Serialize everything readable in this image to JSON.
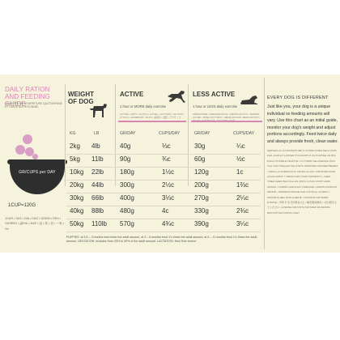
{
  "left": {
    "title": "DAILY RATION AND FEEDING GUIDE",
    "subtitle": "QUANTITÉ DE NOURRITURE QUOTIDIENNE ET GUIDE NUTRITIONNEL",
    "bowl_label": "GR/CUPS per DAY",
    "cup_note": "1CUP=120G",
    "days_text": "JOUR • TAG • DÍA • DAG • DZIEŃ • DEN • GIORNO • ДЕНЬ • NAP • 일 • 天 • 日 • 一天 • يوم"
  },
  "columns": {
    "weight_title": "WEIGHT OF DOG",
    "active_title": "ACTIVE",
    "active_desc": "1 hour or MORE daily exercise",
    "active_meta": "ACTIVE • AKTIV • ACTIVO • ACTIEF • AKTYWNY • AKTIVNÍ • ATTIVO • АКТИВНЫЙ • AKTÍV • 활동적 • 活跃 • アクティブ",
    "less_title": "LESS ACTIVE",
    "less_desc": "1 hour or LESS daily exercise",
    "less_meta": "SÉDENTAIRE • WENIGER AKTIV • MENOS ACTIVO • MINDER ACTIEF • MNIEJ AKTYWNY • MÉNĚ AKTIVNÍ • MENO ATTIVO • МЕНЕЕ АКТИВНЫЙ • KEVÉSBÉ AKTÍV"
  },
  "subheads": {
    "kg": "KG",
    "lb": "LB",
    "gr_day_active": "GR/DAY",
    "cups_day_active": "CUPS/DAY",
    "gr_day_less": "GR/DAY",
    "cups_day_less": "CUPS/DAY"
  },
  "rows": [
    {
      "kg": "2kg",
      "lb": "4lb",
      "gr_a": "40g",
      "cups_a": "⅓c",
      "gr_l": "30g",
      "cups_l": "¼c"
    },
    {
      "kg": "5kg",
      "lb": "11lb",
      "gr_a": "90g",
      "cups_a": "¾c",
      "gr_l": "60g",
      "cups_l": "½c"
    },
    {
      "kg": "10kg",
      "lb": "22lb",
      "gr_a": "180g",
      "cups_a": "1½c",
      "gr_l": "120g",
      "cups_l": "1c"
    },
    {
      "kg": "20kg",
      "lb": "44lb",
      "gr_a": "300g",
      "cups_a": "2½c",
      "gr_l": "200g",
      "cups_l": "1⅔c"
    },
    {
      "kg": "30kg",
      "lb": "66lb",
      "gr_a": "400g",
      "cups_a": "3⅓c",
      "gr_l": "270g",
      "cups_l": "2¼c"
    },
    {
      "kg": "40kg",
      "lb": "88lb",
      "gr_a": "480g",
      "cups_a": "4c",
      "gr_l": "330g",
      "cups_l": "2¾c"
    },
    {
      "kg": "50kg",
      "lb": "110lb",
      "gr_a": "570g",
      "cups_a": "4¾c",
      "gr_l": "390g",
      "cups_l": "3¼c"
    }
  ],
  "puppy_note": "PUPPIES: at 1½ – 3 months feed twice the adult amount, at 3 – 6 months feed 1¾ times the adult amount, at 6 – 11 months feed 1¼ times the adult amount. GESTATION: increase from 25% to 50% of the adult amount. LACTATION: feed 'free choice'.",
  "right": {
    "title": "EVERY DOG IS DIFFERENT",
    "body": "Just like you, your dog is a unique individual so feeding amounts will vary. Use this chart as an initial guide, monitor your dog's weight and adjust portions accordingly. Feed twice daily and always provide fresh, clean water.",
    "multi": "SERVEZ-LE LA NOURRITURE À VOTRE CHIEN DEUX FOIS PAR JOUR ET LAISSEZ TOUJOURS À SA PORTÉE UN BOL D'EAU POTABLE FRAÎCHE • FÜTTERN SIE ZWEIMAL PRO TAG UND STELLEN SIE STETS FRISCHES WASSER BEREIT • SIRVA LA COMIDA DOS VECES AL DÍA Y PROPORCIONE AGUA LIMPIA Y FRESCA EN TODO MOMENTO • GEEF TWEE KEER PER DAG EN ZORG ALTIJD VOOR VERS WATER • KARMIĆ DWA RAZY DZIENNIE • KRMTE DVAKRÁT DENNĚ • SOMMINISTRARE DUE VOLTE AL GIORNO • КОРМИТЕ ДВА РАЗА В ДЕНЬ • NAPONTA KÉTSZER ETESSE • 하루 두 번 급여하십시오 • 每天喂食两次 • 1日2回与えてください • ETESSE NAPONTA KÉTSZER ÉS MINDIG BIZTOSÍTSON FRISS VIZET"
  },
  "colors": {
    "accent_pink": "#d985b4",
    "background": "#f6f3dc",
    "bowl": "#2e2e2e"
  },
  "icons": {
    "active": "running-dog-icon",
    "less_active": "lying-dog-icon",
    "weight": "standing-dog-icon"
  }
}
